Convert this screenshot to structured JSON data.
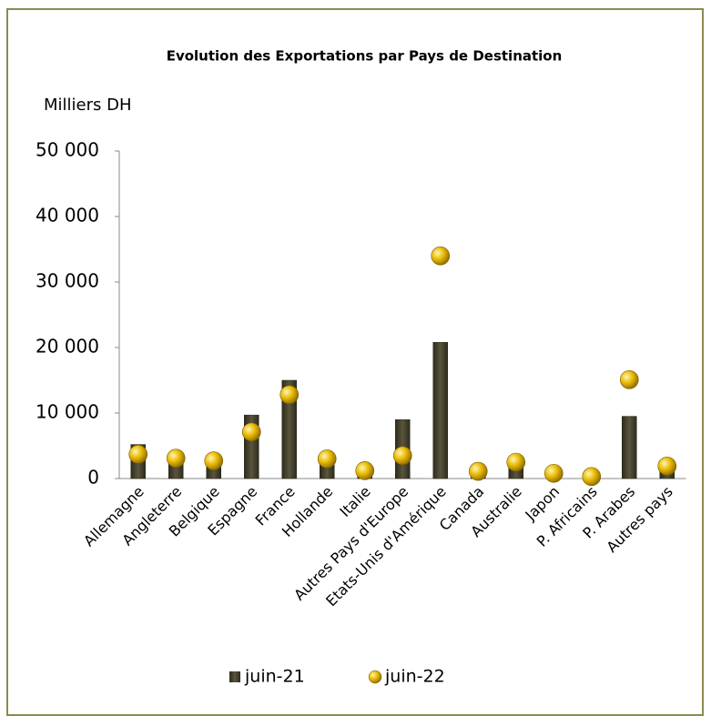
{
  "chart_data": {
    "type": "bar",
    "title": "Evolution des Exportations par Pays de Destination",
    "ylabel": "Milliers DH",
    "categories": [
      "Allemagne",
      "Angleterre",
      "Belgique",
      "Espagne",
      "France",
      "Hollande",
      "Italie",
      "Autres Pays d'Europe",
      "Etats-Unis d'Amérique",
      "Canada",
      "Australie",
      "Japon",
      "P. Africains",
      "P. Arabes",
      "Autres pays"
    ],
    "series": [
      {
        "name": "juin-21",
        "color": "#4a4632",
        "marker": "bar",
        "values": [
          5200,
          2800,
          2200,
          9700,
          15000,
          2500,
          600,
          9000,
          20800,
          600,
          2000,
          300,
          100,
          9500,
          1200
        ]
      },
      {
        "name": "juin-22",
        "color": "#e8b800",
        "marker": "circle",
        "values": [
          3700,
          3100,
          2700,
          7100,
          12800,
          3000,
          1200,
          3500,
          34000,
          1100,
          2500,
          800,
          300,
          15100,
          1900
        ]
      }
    ],
    "ylim": [
      0,
      50000
    ],
    "yticks": [
      0,
      {
        "value": 10000,
        "label": "10 000"
      },
      {
        "value": 20000,
        "label": "20 000"
      },
      {
        "value": 30000,
        "label": "30 000"
      },
      {
        "value": 40000,
        "label": "40 000"
      },
      {
        "value": 50000,
        "label": "50 000"
      }
    ],
    "grid": false,
    "legend": "bottom"
  }
}
